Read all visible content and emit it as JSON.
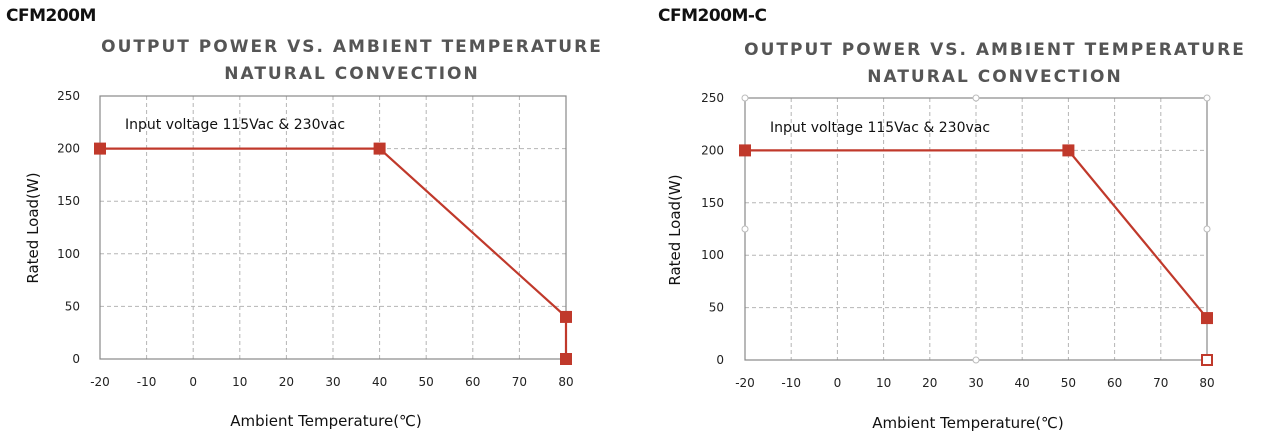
{
  "chart_data": [
    {
      "type": "line",
      "model": "CFM200M",
      "title_lines": [
        "OUTPUT POWER VS. AMBIENT TEMPERATURE",
        "NATURAL CONVECTION"
      ],
      "xlabel": "Ambient Temperature(℃)",
      "ylabel": "Rated Load(W)",
      "annotation": "Input voltage 115Vac & 230vac",
      "x_ticks": [
        "-20",
        "-10",
        "0",
        "10",
        "20",
        "30",
        "40",
        "50",
        "60",
        "70",
        "80"
      ],
      "y_ticks": [
        "0",
        "50",
        "100",
        "150",
        "200",
        "250"
      ],
      "xlim": [
        -20,
        80
      ],
      "ylim": [
        0,
        250
      ],
      "grid": true,
      "series": [
        {
          "x": [
            -20,
            40,
            80,
            80
          ],
          "y": [
            200,
            200,
            40,
            0
          ]
        }
      ],
      "line_color": "#c0392b"
    },
    {
      "type": "line",
      "model": "CFM200M-C",
      "title_lines": [
        "OUTPUT POWER VS. AMBIENT TEMPERATURE",
        "NATURAL CONVECTION"
      ],
      "xlabel": "Ambient Temperature(℃)",
      "ylabel": "Rated Load(W)",
      "annotation": "Input voltage 115Vac & 230vac",
      "x_ticks": [
        "-20",
        "-10",
        "0",
        "10",
        "20",
        "30",
        "40",
        "50",
        "60",
        "70",
        "80"
      ],
      "y_ticks": [
        "0",
        "50",
        "100",
        "150",
        "200",
        "250"
      ],
      "xlim": [
        -20,
        80
      ],
      "ylim": [
        0,
        250
      ],
      "grid": true,
      "series": [
        {
          "x": [
            -20,
            50,
            80
          ],
          "y": [
            200,
            200,
            40
          ]
        }
      ],
      "line_color": "#c0392b"
    }
  ]
}
